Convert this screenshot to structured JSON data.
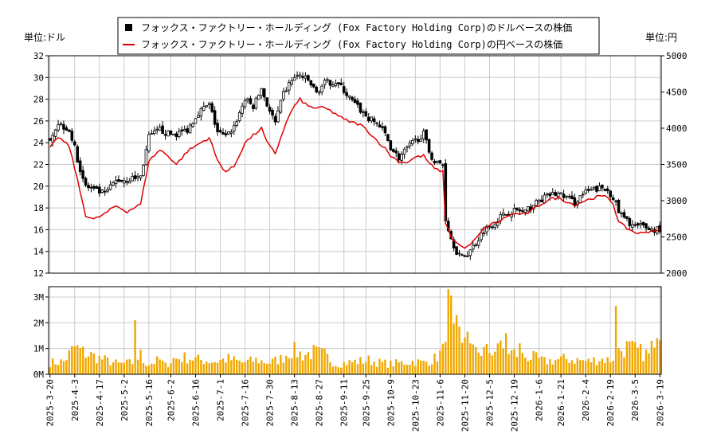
{
  "chart_data": {
    "type": "candlestick",
    "legend": {
      "usd_series": "フォックス・ファクトリー・ホールディング (Fox Factory Holding Corp)のドルベースの株価",
      "jpy_series": "フォックス・ファクトリー・ホールディング (Fox Factory Holding Corp)の円ベースの株価"
    },
    "left_unit": "単位:ドル",
    "right_unit": "単位:円",
    "price_axis_usd": {
      "min": 12,
      "max": 32,
      "ticks": [
        12,
        14,
        16,
        18,
        20,
        22,
        24,
        26,
        28,
        30,
        32
      ]
    },
    "price_axis_jpy": {
      "min": 2000,
      "max": 5000,
      "ticks": [
        2000,
        2500,
        3000,
        3500,
        4000,
        4500,
        5000
      ]
    },
    "volume_axis": {
      "min": 0,
      "max": 3.4,
      "ticks": [
        0,
        1,
        2,
        3
      ],
      "tick_labels": [
        "0M",
        "1M",
        "2M",
        "3M"
      ]
    },
    "x_labels": [
      "2025-3-20",
      "2025-4-3",
      "2025-4-17",
      "2025-5-2",
      "2025-5-16",
      "2025-6-2",
      "2025-6-16",
      "2025-7-1",
      "2025-7-16",
      "2025-7-30",
      "2025-8-13",
      "2025-8-27",
      "2025-9-11",
      "2025-9-25",
      "2025-10-9",
      "2025-10-23",
      "2025-11-6",
      "2025-11-20",
      "2025-12-5",
      "2025-12-19",
      "2026-1-6",
      "2026-1-21",
      "2026-2-4",
      "2026-2-19",
      "2026-3-5",
      "2026-3-19"
    ],
    "usd_keypoints": [
      [
        0,
        24.5
      ],
      [
        3,
        25.8
      ],
      [
        7,
        25.2
      ],
      [
        9,
        23.5
      ],
      [
        11,
        21.5
      ],
      [
        13,
        20.0
      ],
      [
        16,
        19.6
      ],
      [
        20,
        19.3
      ],
      [
        24,
        20.5
      ],
      [
        28,
        20.6
      ],
      [
        33,
        20.9
      ],
      [
        36,
        24.5
      ],
      [
        40,
        25.2
      ],
      [
        43,
        24.8
      ],
      [
        46,
        24.8
      ],
      [
        50,
        25.2
      ],
      [
        54,
        26.8
      ],
      [
        58,
        27.5
      ],
      [
        61,
        25.0
      ],
      [
        64,
        24.5
      ],
      [
        67,
        25.5
      ],
      [
        71,
        28.0
      ],
      [
        74,
        27.3
      ],
      [
        77,
        29.0
      ],
      [
        79,
        27.5
      ],
      [
        82,
        25.8
      ],
      [
        85,
        28.5
      ],
      [
        88,
        29.8
      ],
      [
        91,
        30.2
      ],
      [
        94,
        29.7
      ],
      [
        97,
        28.6
      ],
      [
        100,
        29.5
      ],
      [
        104,
        29.6
      ],
      [
        107,
        28.8
      ],
      [
        110,
        27.8
      ],
      [
        113,
        27.0
      ],
      [
        116,
        26.2
      ],
      [
        119,
        25.8
      ],
      [
        122,
        24.8
      ],
      [
        124,
        23.6
      ],
      [
        127,
        22.6
      ],
      [
        130,
        23.5
      ],
      [
        133,
        24.2
      ],
      [
        136,
        24.8
      ],
      [
        138,
        23.2
      ],
      [
        140,
        22.2
      ],
      [
        143,
        22.0
      ],
      [
        144,
        17.0
      ],
      [
        146,
        15.2
      ],
      [
        148,
        14.0
      ],
      [
        150,
        13.4
      ],
      [
        152,
        13.8
      ],
      [
        155,
        14.8
      ],
      [
        158,
        16.0
      ],
      [
        161,
        16.5
      ],
      [
        164,
        17.2
      ],
      [
        167,
        17.6
      ],
      [
        170,
        17.8
      ],
      [
        173,
        17.6
      ],
      [
        176,
        18.3
      ],
      [
        179,
        18.8
      ],
      [
        182,
        19.2
      ],
      [
        185,
        19.3
      ],
      [
        188,
        19.0
      ],
      [
        191,
        18.5
      ],
      [
        194,
        19.3
      ],
      [
        197,
        19.6
      ],
      [
        200,
        19.8
      ],
      [
        203,
        19.6
      ],
      [
        205,
        19.0
      ],
      [
        207,
        17.6
      ],
      [
        210,
        16.8
      ],
      [
        213,
        16.3
      ],
      [
        216,
        16.3
      ],
      [
        219,
        16.0
      ],
      [
        222,
        16.1
      ]
    ],
    "jpy_keypoints": [
      [
        0,
        3720
      ],
      [
        3,
        3880
      ],
      [
        7,
        3750
      ],
      [
        9,
        3450
      ],
      [
        11,
        3120
      ],
      [
        13,
        2800
      ],
      [
        16,
        2740
      ],
      [
        20,
        2820
      ],
      [
        24,
        2930
      ],
      [
        28,
        2850
      ],
      [
        33,
        2950
      ],
      [
        36,
        3550
      ],
      [
        40,
        3700
      ],
      [
        43,
        3620
      ],
      [
        46,
        3500
      ],
      [
        50,
        3680
      ],
      [
        54,
        3780
      ],
      [
        58,
        3870
      ],
      [
        61,
        3550
      ],
      [
        64,
        3400
      ],
      [
        67,
        3470
      ],
      [
        71,
        3800
      ],
      [
        74,
        3900
      ],
      [
        77,
        4000
      ],
      [
        79,
        3800
      ],
      [
        82,
        3650
      ],
      [
        85,
        3980
      ],
      [
        88,
        4250
      ],
      [
        91,
        4400
      ],
      [
        94,
        4300
      ],
      [
        97,
        4280
      ],
      [
        100,
        4280
      ],
      [
        104,
        4200
      ],
      [
        107,
        4120
      ],
      [
        110,
        4080
      ],
      [
        113,
        4050
      ],
      [
        116,
        3950
      ],
      [
        119,
        3830
      ],
      [
        122,
        3720
      ],
      [
        124,
        3620
      ],
      [
        127,
        3540
      ],
      [
        130,
        3530
      ],
      [
        133,
        3600
      ],
      [
        136,
        3620
      ],
      [
        138,
        3520
      ],
      [
        140,
        3440
      ],
      [
        143,
        3400
      ],
      [
        144,
        2700
      ],
      [
        146,
        2500
      ],
      [
        148,
        2420
      ],
      [
        150,
        2360
      ],
      [
        152,
        2360
      ],
      [
        155,
        2470
      ],
      [
        158,
        2620
      ],
      [
        161,
        2680
      ],
      [
        164,
        2720
      ],
      [
        167,
        2800
      ],
      [
        170,
        2820
      ],
      [
        173,
        2810
      ],
      [
        176,
        2880
      ],
      [
        179,
        2960
      ],
      [
        182,
        3020
      ],
      [
        185,
        3040
      ],
      [
        188,
        2990
      ],
      [
        191,
        2940
      ],
      [
        194,
        2990
      ],
      [
        197,
        3030
      ],
      [
        200,
        3060
      ],
      [
        203,
        3050
      ],
      [
        205,
        2960
      ],
      [
        207,
        2700
      ],
      [
        210,
        2620
      ],
      [
        213,
        2560
      ],
      [
        216,
        2550
      ],
      [
        219,
        2590
      ],
      [
        222,
        2600
      ]
    ],
    "volume_keypoints": [
      [
        0,
        0.45
      ],
      [
        5,
        0.5
      ],
      [
        9,
        1.05
      ],
      [
        12,
        0.85
      ],
      [
        16,
        0.7
      ],
      [
        20,
        0.55
      ],
      [
        25,
        0.4
      ],
      [
        30,
        0.45
      ],
      [
        33,
        0.75
      ],
      [
        34,
        0.5
      ],
      [
        36,
        0.4
      ],
      [
        40,
        0.55
      ],
      [
        42,
        0.35
      ],
      [
        45,
        0.6
      ],
      [
        50,
        0.65
      ],
      [
        55,
        0.55
      ],
      [
        60,
        0.5
      ],
      [
        65,
        0.6
      ],
      [
        70,
        0.45
      ],
      [
        75,
        0.55
      ],
      [
        80,
        0.45
      ],
      [
        84,
        0.6
      ],
      [
        88,
        0.95
      ],
      [
        92,
        0.75
      ],
      [
        96,
        0.85
      ],
      [
        100,
        0.75
      ],
      [
        104,
        0.4
      ],
      [
        108,
        0.45
      ],
      [
        112,
        0.5
      ],
      [
        116,
        0.55
      ],
      [
        120,
        0.45
      ],
      [
        124,
        0.4
      ],
      [
        128,
        0.45
      ],
      [
        132,
        0.5
      ],
      [
        136,
        0.45
      ],
      [
        140,
        0.6
      ],
      [
        143,
        0.9
      ],
      [
        144,
        2.0
      ],
      [
        146,
        1.7
      ],
      [
        148,
        1.3
      ],
      [
        150,
        0.95
      ],
      [
        152,
        1.1
      ],
      [
        154,
        0.85
      ],
      [
        156,
        0.9
      ],
      [
        160,
        0.9
      ],
      [
        164,
        1.0
      ],
      [
        168,
        0.85
      ],
      [
        172,
        0.7
      ],
      [
        176,
        0.65
      ],
      [
        180,
        0.5
      ],
      [
        184,
        0.55
      ],
      [
        188,
        0.6
      ],
      [
        192,
        0.55
      ],
      [
        196,
        0.5
      ],
      [
        200,
        0.6
      ],
      [
        204,
        0.55
      ],
      [
        207,
        0.9
      ],
      [
        210,
        1.05
      ],
      [
        214,
        0.9
      ],
      [
        218,
        0.75
      ],
      [
        222,
        1.0
      ]
    ],
    "volume_spikes": [
      [
        31,
        2.1
      ],
      [
        145,
        3.3
      ],
      [
        146,
        3.05
      ],
      [
        148,
        2.3
      ],
      [
        149,
        1.85
      ],
      [
        152,
        1.65
      ],
      [
        153,
        1.2
      ],
      [
        163,
        1.2
      ],
      [
        166,
        1.6
      ],
      [
        171,
        1.2
      ],
      [
        206,
        2.65
      ],
      [
        219,
        1.3
      ],
      [
        221,
        1.4
      ]
    ],
    "n_bars": 223,
    "colors": {
      "usd_candle": "#000000",
      "jpy_line": "#dd0000",
      "volume": "#f0a800",
      "grid": "#cccccc",
      "axis": "#000000"
    }
  }
}
